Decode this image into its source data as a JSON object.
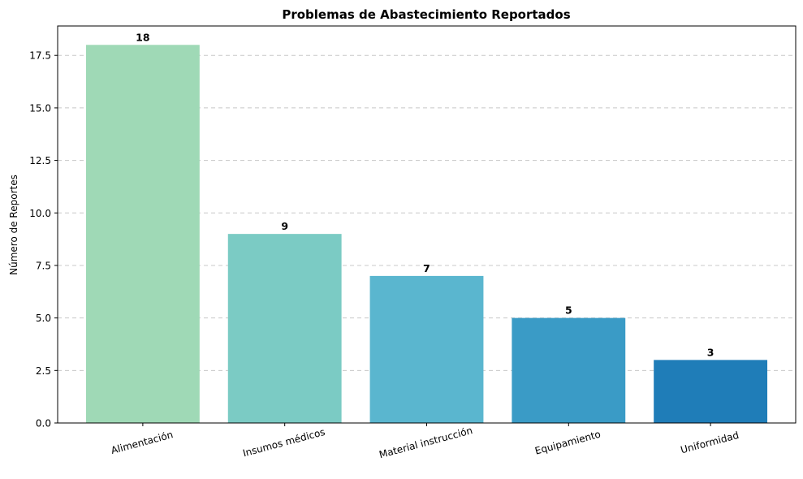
{
  "chart_data": {
    "type": "bar",
    "title": "Problemas de Abastecimiento Reportados",
    "xlabel": "",
    "ylabel": "Número de Reportes",
    "categories": [
      "Alimentación",
      "Insumos médicos",
      "Material instrucción",
      "Equipamiento",
      "Uniformidad"
    ],
    "values": [
      18,
      9,
      7,
      5,
      3
    ],
    "data_labels": [
      "18",
      "9",
      "7",
      "5",
      "3"
    ],
    "colors": [
      "#9fd9b6",
      "#7bcbc4",
      "#5ab6cf",
      "#3a9bc6",
      "#1f7db8"
    ],
    "ylim": [
      0,
      18.9
    ],
    "yticks": [
      0.0,
      2.5,
      5.0,
      7.5,
      10.0,
      12.5,
      15.0,
      17.5
    ],
    "ytick_labels": [
      "0.0",
      "2.5",
      "5.0",
      "7.5",
      "10.0",
      "12.5",
      "15.0",
      "17.5"
    ],
    "grid": "y-dashed",
    "legend": "none"
  }
}
